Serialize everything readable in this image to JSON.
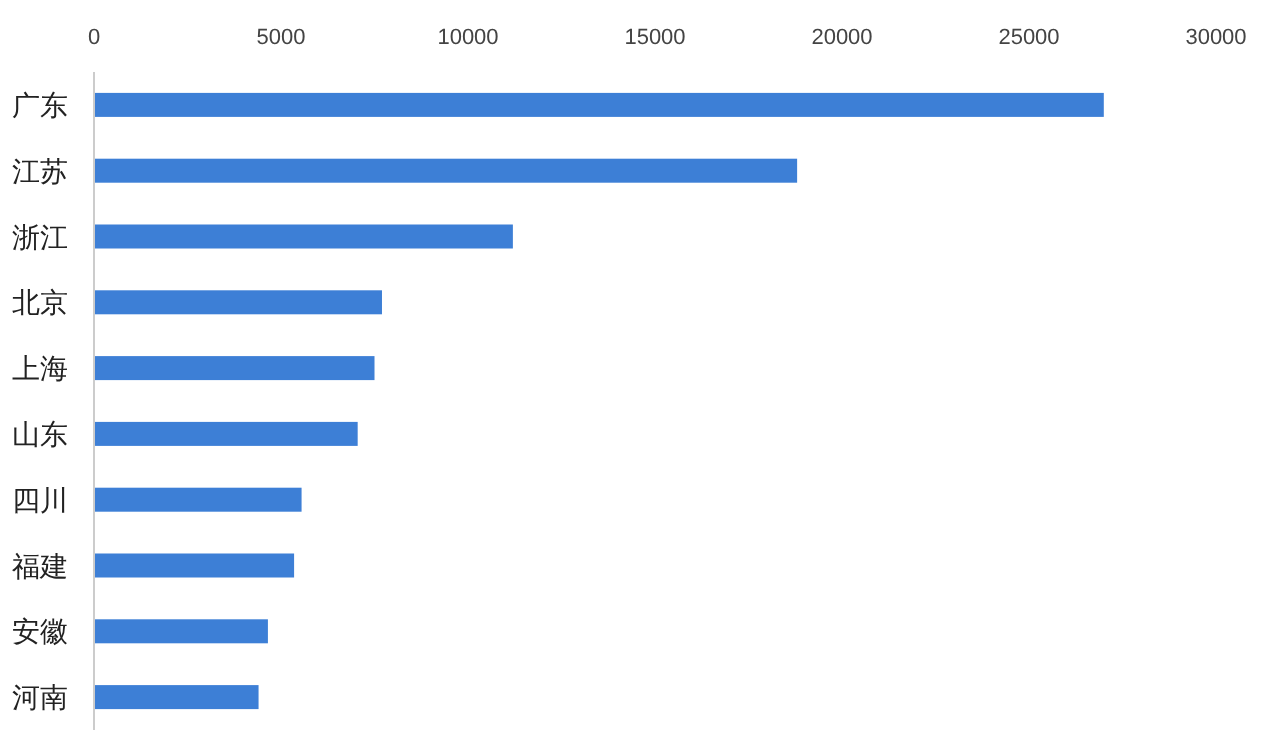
{
  "chart_data": {
    "type": "bar",
    "orientation": "horizontal",
    "categories": [
      "广东",
      "江苏",
      "浙江",
      "北京",
      "上海",
      "山东",
      "四川",
      "福建",
      "安徽",
      "河南"
    ],
    "values": [
      27000,
      18800,
      11200,
      7700,
      7500,
      7050,
      5550,
      5350,
      4650,
      4400
    ],
    "color": "#3d7fd6",
    "xlim": [
      0,
      30000
    ],
    "xticks": [
      0,
      5000,
      10000,
      15000,
      20000,
      25000,
      30000
    ],
    "grid": false
  }
}
